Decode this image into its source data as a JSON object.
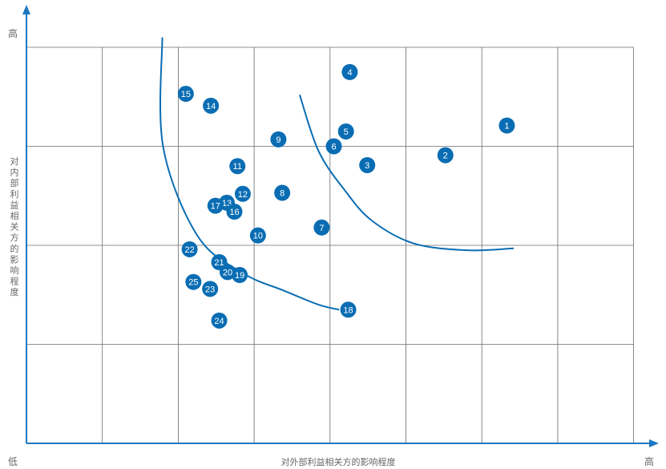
{
  "chart_data": {
    "type": "scatter",
    "title": "",
    "xlabel": "对外部利益相关方的影响程度",
    "ylabel": "对内部利益相关方的影响程度",
    "x_low_label": "低",
    "x_high_label": "高",
    "y_high_label": "高",
    "xlim": [
      0,
      8.3
    ],
    "ylim": [
      0,
      4.0
    ],
    "grid": true,
    "colors": {
      "point": "#0a6db3",
      "curve": "#0a6db3",
      "grid": "#6b6b6b",
      "axis": "#1b78c2",
      "point_text": "#ffffff"
    },
    "points": [
      {
        "label": "1",
        "x": 6.33,
        "y": 3.21
      },
      {
        "label": "2",
        "x": 5.52,
        "y": 2.91
      },
      {
        "label": "3",
        "x": 4.49,
        "y": 2.81
      },
      {
        "label": "4",
        "x": 4.26,
        "y": 3.75
      },
      {
        "label": "5",
        "x": 4.21,
        "y": 3.15
      },
      {
        "label": "6",
        "x": 4.05,
        "y": 3.0
      },
      {
        "label": "7",
        "x": 3.89,
        "y": 2.18
      },
      {
        "label": "8",
        "x": 3.37,
        "y": 2.53
      },
      {
        "label": "9",
        "x": 3.32,
        "y": 3.07
      },
      {
        "label": "10",
        "x": 3.05,
        "y": 2.1
      },
      {
        "label": "11",
        "x": 2.78,
        "y": 2.8
      },
      {
        "label": "12",
        "x": 2.85,
        "y": 2.52
      },
      {
        "label": "13",
        "x": 2.64,
        "y": 2.43
      },
      {
        "label": "16",
        "x": 2.74,
        "y": 2.34
      },
      {
        "label": "17",
        "x": 2.49,
        "y": 2.4
      },
      {
        "label": "14",
        "x": 2.43,
        "y": 3.41
      },
      {
        "label": "15",
        "x": 2.1,
        "y": 3.53
      },
      {
        "label": "18",
        "x": 4.24,
        "y": 1.35
      },
      {
        "label": "19",
        "x": 2.81,
        "y": 1.7
      },
      {
        "label": "20",
        "x": 2.65,
        "y": 1.73
      },
      {
        "label": "21",
        "x": 2.54,
        "y": 1.83
      },
      {
        "label": "22",
        "x": 2.15,
        "y": 1.96
      },
      {
        "label": "23",
        "x": 2.42,
        "y": 1.56
      },
      {
        "label": "24",
        "x": 2.54,
        "y": 1.24
      },
      {
        "label": "25",
        "x": 2.2,
        "y": 1.63
      }
    ],
    "curves": [
      {
        "x": [
          1.79,
          1.8,
          2.25,
          2.85,
          3.4,
          3.85,
          4.12
        ],
        "y": [
          4.1,
          3.0,
          2.1,
          1.72,
          1.54,
          1.4,
          1.35
        ]
      },
      {
        "x": [
          3.6,
          3.85,
          4.2,
          4.55,
          5.1,
          5.8,
          6.42
        ],
        "y": [
          3.52,
          2.95,
          2.55,
          2.25,
          2.02,
          1.95,
          1.97
        ]
      }
    ]
  }
}
